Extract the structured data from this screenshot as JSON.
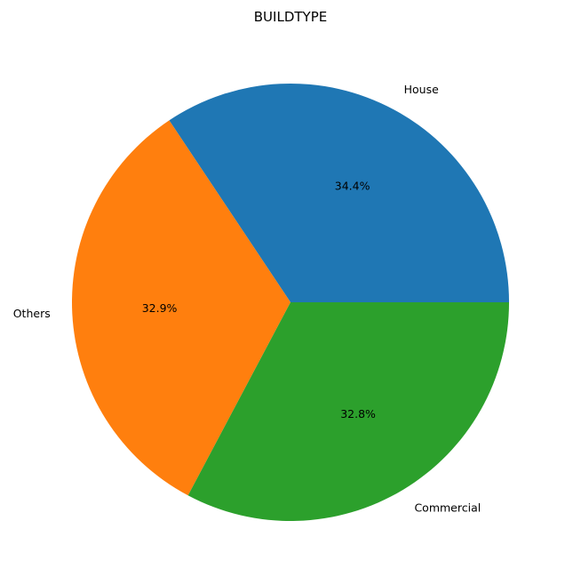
{
  "chart_data": {
    "type": "pie",
    "title": "BUILDTYPE",
    "categories": [
      "House",
      "Others",
      "Commercial"
    ],
    "values": [
      34.4,
      32.9,
      32.8
    ],
    "value_labels": [
      "34.4%",
      "32.9%",
      "32.8%"
    ],
    "colors": [
      "#1f77b4",
      "#ff7f0e",
      "#2ca02c"
    ],
    "start_angle_deg": 0,
    "direction": "counterclockwise"
  }
}
